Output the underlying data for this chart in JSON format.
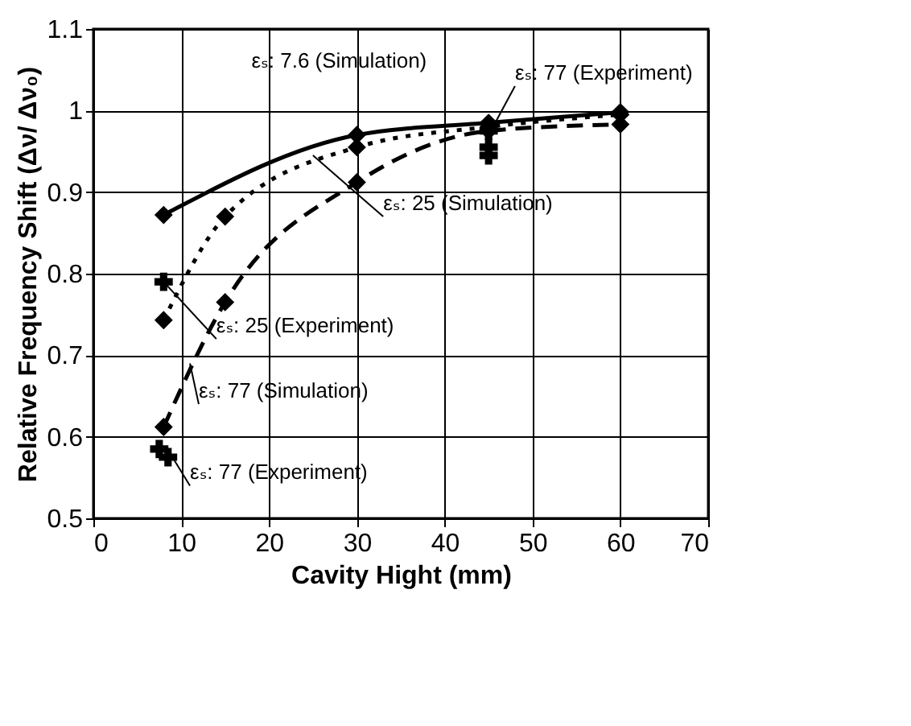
{
  "chart_data": {
    "type": "line",
    "xlabel": "Cavity Hight (mm)",
    "ylabel": "Relative Frequency Shift (Δν/ Δν₀)",
    "xlim": [
      0,
      70
    ],
    "xticks": [
      0,
      10,
      20,
      30,
      40,
      50,
      60,
      70
    ],
    "ylim": [
      0.5,
      1.1
    ],
    "yticks": [
      0.5,
      0.6,
      0.7,
      0.8,
      0.9,
      1,
      1.1
    ],
    "grid": true,
    "series": [
      {
        "color": "#000000",
        "line_style": "solid",
        "marker": "diamond",
        "x": [
          8,
          30,
          45,
          60
        ],
        "values": [
          0.872,
          0.97,
          0.985,
          0.998
        ]
      },
      {
        "color": "#000000",
        "line_style": "dotted",
        "marker": "diamond",
        "x": [
          8,
          15,
          30,
          45,
          60
        ],
        "values": [
          0.743,
          0.87,
          0.955,
          0.98,
          0.995
        ]
      },
      {
        "color": "#000000",
        "line_style": "dashed",
        "marker": "diamond",
        "x": [
          8,
          15,
          30,
          45,
          60
        ],
        "values": [
          0.612,
          0.765,
          0.912,
          0.975,
          0.983
        ]
      },
      {
        "type": "scatter",
        "color": "#000000",
        "marker": "cross",
        "x": [
          8,
          45
        ],
        "values": [
          0.79,
          0.975
        ]
      },
      {
        "type": "scatter",
        "color": "#000000",
        "marker": "cross",
        "x": [
          7.5,
          8.5,
          45,
          45
        ],
        "values": [
          0.585,
          0.575,
          0.955,
          0.945
        ]
      }
    ],
    "annotations": [
      "εₛ: 7.6 (Simulation)",
      {
        "text": "εₛ: 77 (Experiment)",
        "x": 45,
        "y": 0.97
      },
      {
        "text": "εₛ: 25 (Simulation)",
        "x": 25,
        "y": 0.945
      },
      {
        "text": "εₛ: 25 (Experiment)",
        "x": 8,
        "y": 0.79
      },
      {
        "text": "εₛ: 77 (Simulation)",
        "x": 11,
        "y": 0.69
      },
      {
        "text": "εₛ: 77 (Experiment)",
        "x": 9,
        "y": 0.575
      }
    ]
  }
}
